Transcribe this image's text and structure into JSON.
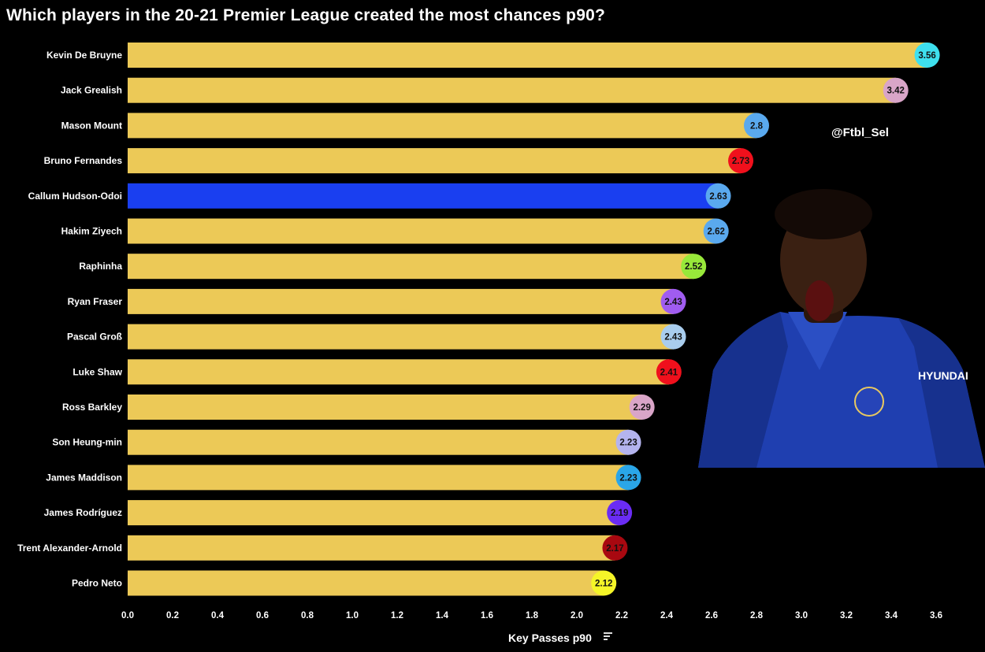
{
  "chart_data": {
    "type": "bar",
    "orientation": "horizontal",
    "title": "Which players in the 20-21 Premier League created the most chances p90?",
    "xlabel": "Key Passes p90",
    "ylabel": "",
    "xlim": [
      0,
      3.6
    ],
    "xticks": [
      "0.0",
      "0.2",
      "0.4",
      "0.6",
      "0.8",
      "1.0",
      "1.2",
      "1.4",
      "1.6",
      "1.8",
      "2.0",
      "2.2",
      "2.4",
      "2.6",
      "2.8",
      "3.0",
      "3.2",
      "3.4",
      "3.6"
    ],
    "grid": false,
    "categories": [
      "Kevin De Bruyne",
      "Jack Grealish",
      "Mason Mount",
      "Bruno Fernandes",
      "Callum Hudson-Odoi",
      "Hakim Ziyech",
      "Raphinha",
      "Ryan Fraser",
      "Pascal Groß",
      "Luke Shaw",
      "Ross Barkley",
      "Son Heung-min",
      "James Maddison",
      "James Rodríguez",
      "Trent Alexander-Arnold",
      "Pedro Neto"
    ],
    "values": [
      3.56,
      3.42,
      2.8,
      2.73,
      2.63,
      2.62,
      2.52,
      2.43,
      2.43,
      2.41,
      2.29,
      2.23,
      2.23,
      2.19,
      2.17,
      2.12
    ],
    "value_labels": [
      "3.56",
      "3.42",
      "2.8",
      "2.73",
      "2.63",
      "2.62",
      "2.52",
      "2.43",
      "2.43",
      "2.41",
      "2.29",
      "2.23",
      "2.23",
      "2.19",
      "2.17",
      "2.12"
    ],
    "bar_color": "#ecc957",
    "highlight_index": 4,
    "highlight_color": "#1a3ff0",
    "marker_colors": [
      "#3ee0ee",
      "#d9a5c8",
      "#5aa9ee",
      "#f0101c",
      "#5aa9ee",
      "#5aa9ee",
      "#98e83a",
      "#a05cf0",
      "#a9cdee",
      "#f0101c",
      "#d9a5c8",
      "#b4b4ee",
      "#2aa6e8",
      "#6a2cf4",
      "#a80810",
      "#f5f528"
    ],
    "watermark": "@Ftbl_Sel"
  }
}
